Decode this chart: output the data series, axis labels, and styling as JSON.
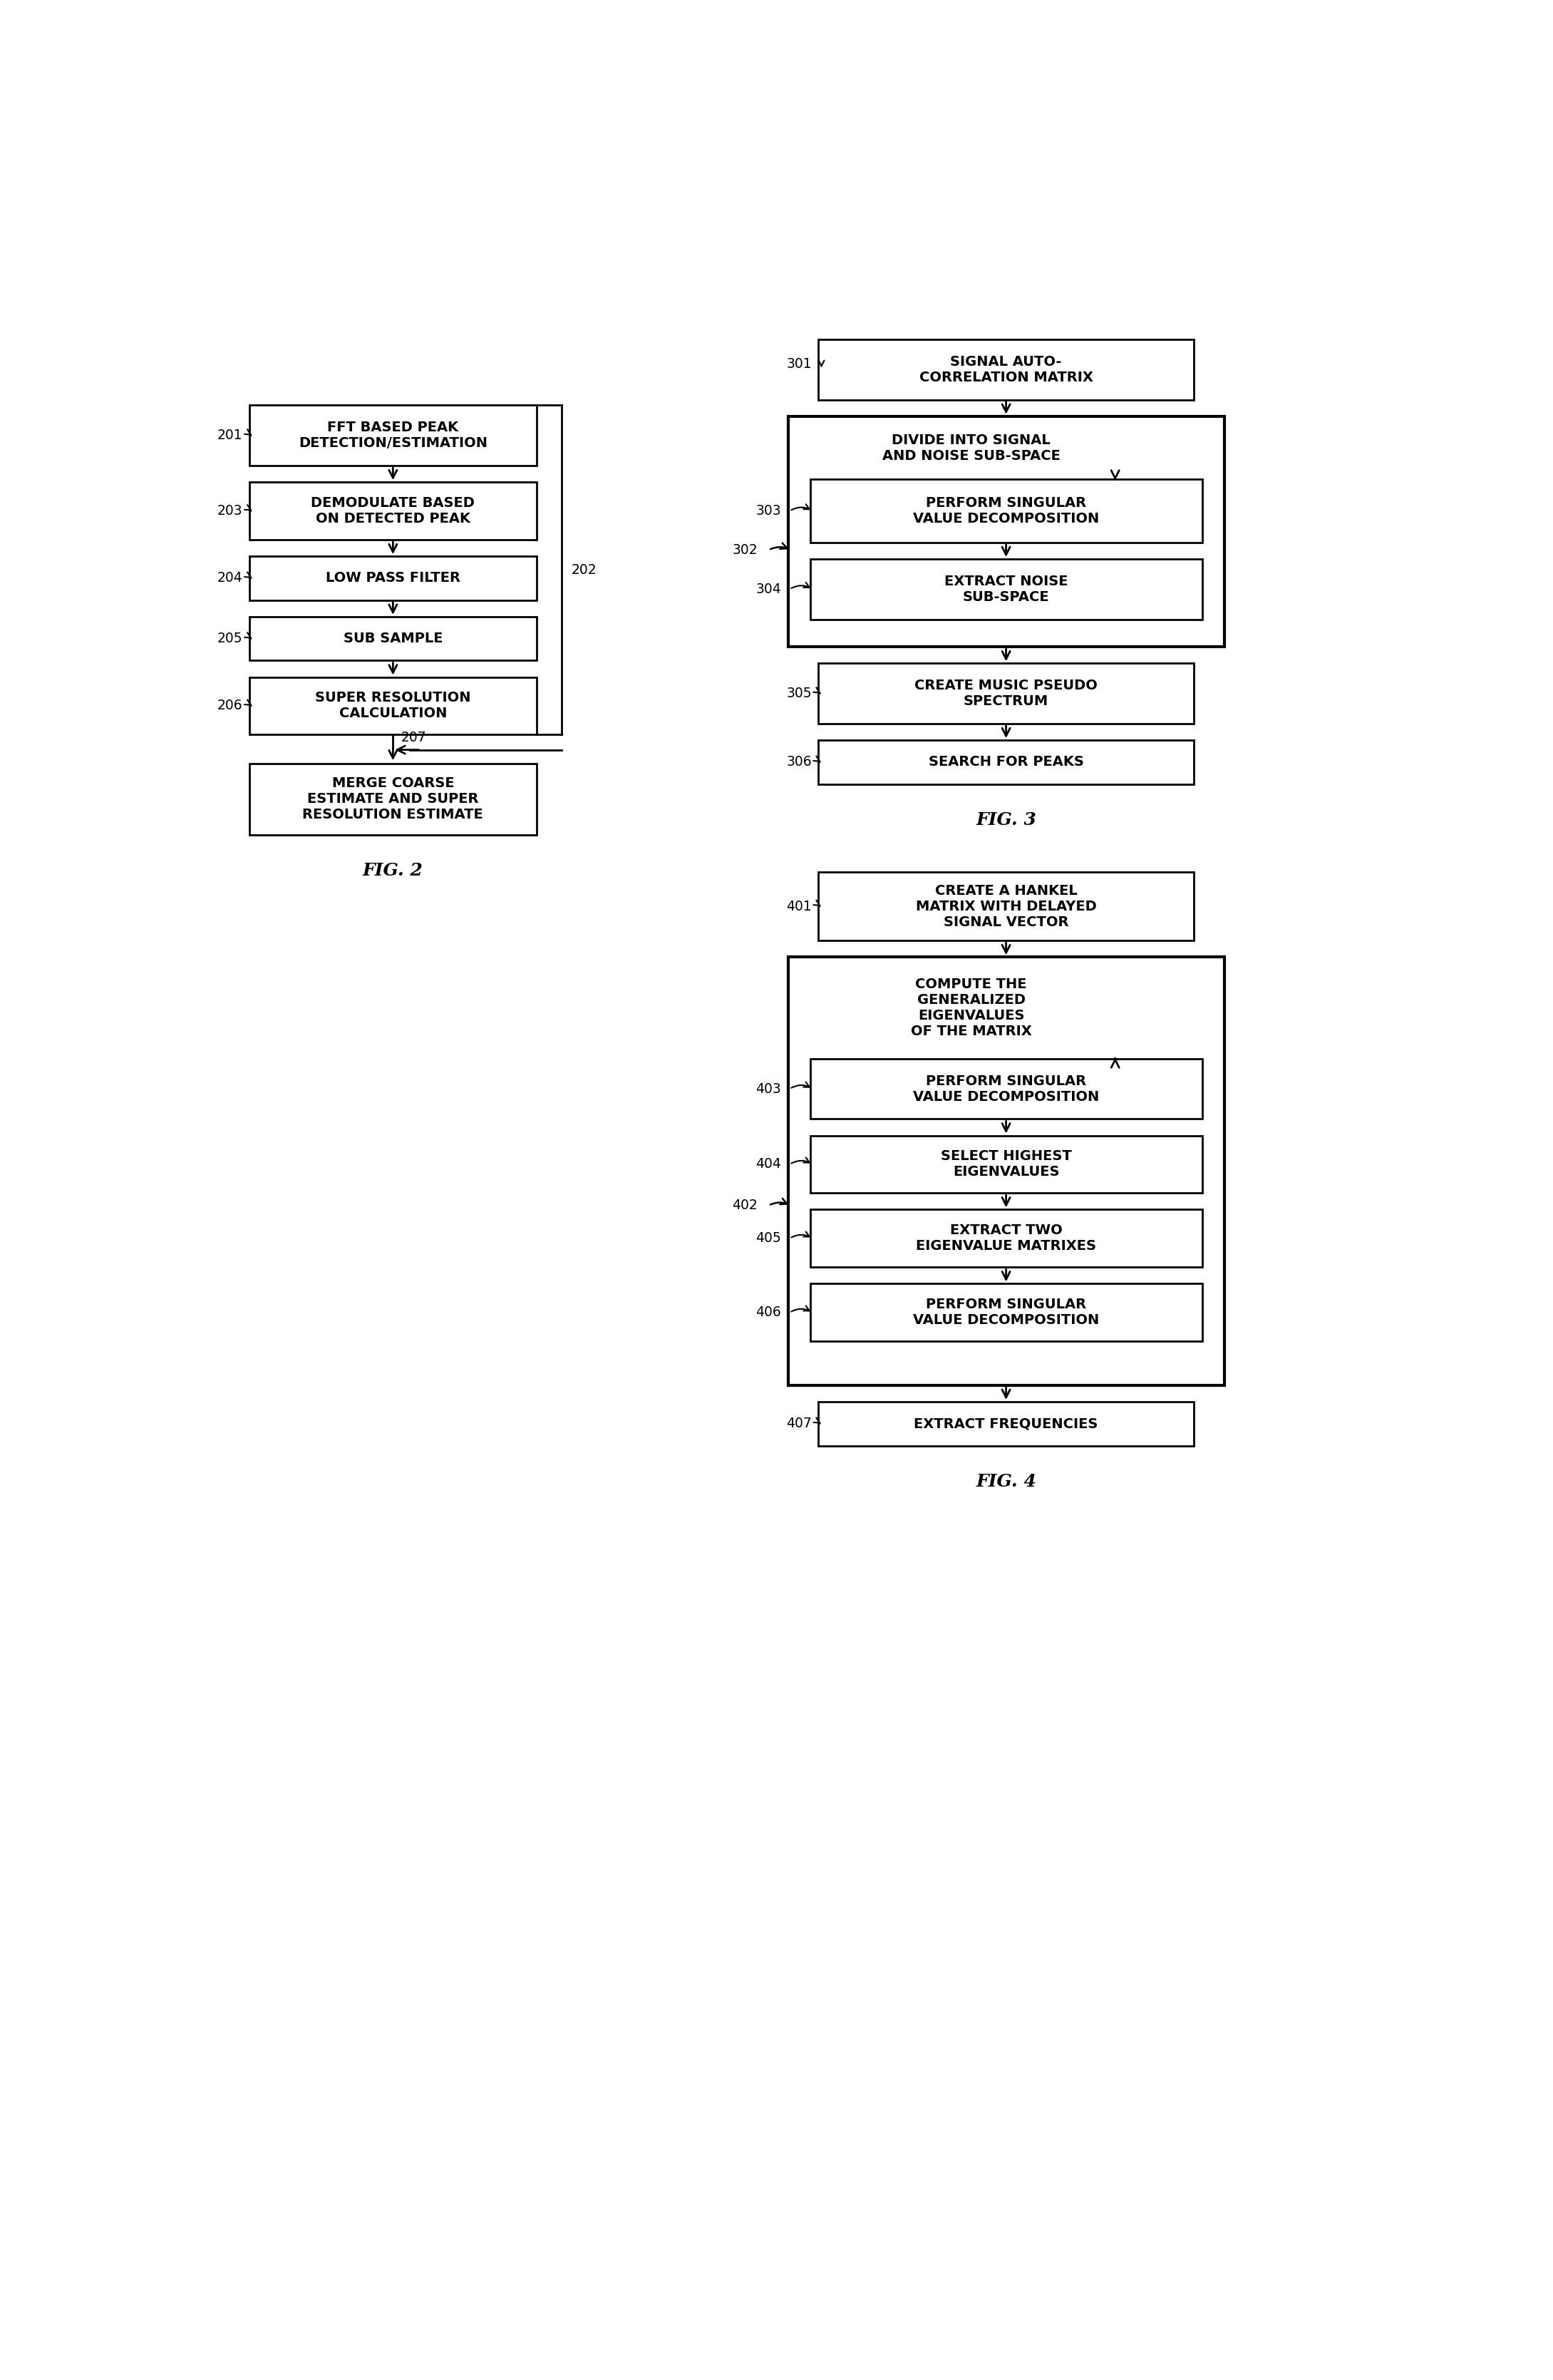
{
  "bg_color": "#ffffff",
  "fig2": {
    "label": "FIG. 2",
    "box201": "FFT BASED PEAK\nDETECTION/ESTIMATION",
    "box203": "DEMODULATE BASED\nON DETECTED PEAK",
    "box204": "LOW PASS FILTER",
    "box205": "SUB SAMPLE",
    "box206": "SUPER RESOLUTION\nCALCULATION",
    "box207": "MERGE COARSE\nESTIMATE AND SUPER\nRESOLUTION ESTIMATE",
    "ref201": "201",
    "ref203": "203",
    "ref204": "204",
    "ref205": "205",
    "ref206": "206",
    "ref207": "207",
    "ref202": "202"
  },
  "fig3": {
    "label": "FIG. 3",
    "box301": "SIGNAL AUTO-\nCORRELATION MATRIX",
    "box302top": "DIVIDE INTO SIGNAL\nAND NOISE SUB-SPACE",
    "box303": "PERFORM SINGULAR\nVALUE DECOMPOSITION",
    "box304": "EXTRACT NOISE\nSUB-SPACE",
    "box305": "CREATE MUSIC PSEUDO\nSPECTRUM",
    "box306": "SEARCH FOR PEAKS",
    "ref301": "301",
    "ref302": "302",
    "ref303": "303",
    "ref304": "304",
    "ref305": "305",
    "ref306": "306"
  },
  "fig4": {
    "label": "FIG. 4",
    "box401": "CREATE A HANKEL\nMATRIX WITH DELAYED\nSIGNAL VECTOR",
    "box402top": "COMPUTE THE\nGENERALIZED\nEIGENVALUES\nOF THE MATRIX",
    "box403": "PERFORM SINGULAR\nVALUE DECOMPOSITION",
    "box404": "SELECT HIGHEST\nEIGENVALUES",
    "box405": "EXTRACT TWO\nEIGENVALUE MATRIXES",
    "box406": "PERFORM SINGULAR\nVALUE DECOMPOSITION",
    "box407": "EXTRACT FREQUENCIES",
    "ref401": "401",
    "ref402": "402",
    "ref403": "403",
    "ref404": "404",
    "ref405": "405",
    "ref406": "406",
    "ref407": "407"
  }
}
